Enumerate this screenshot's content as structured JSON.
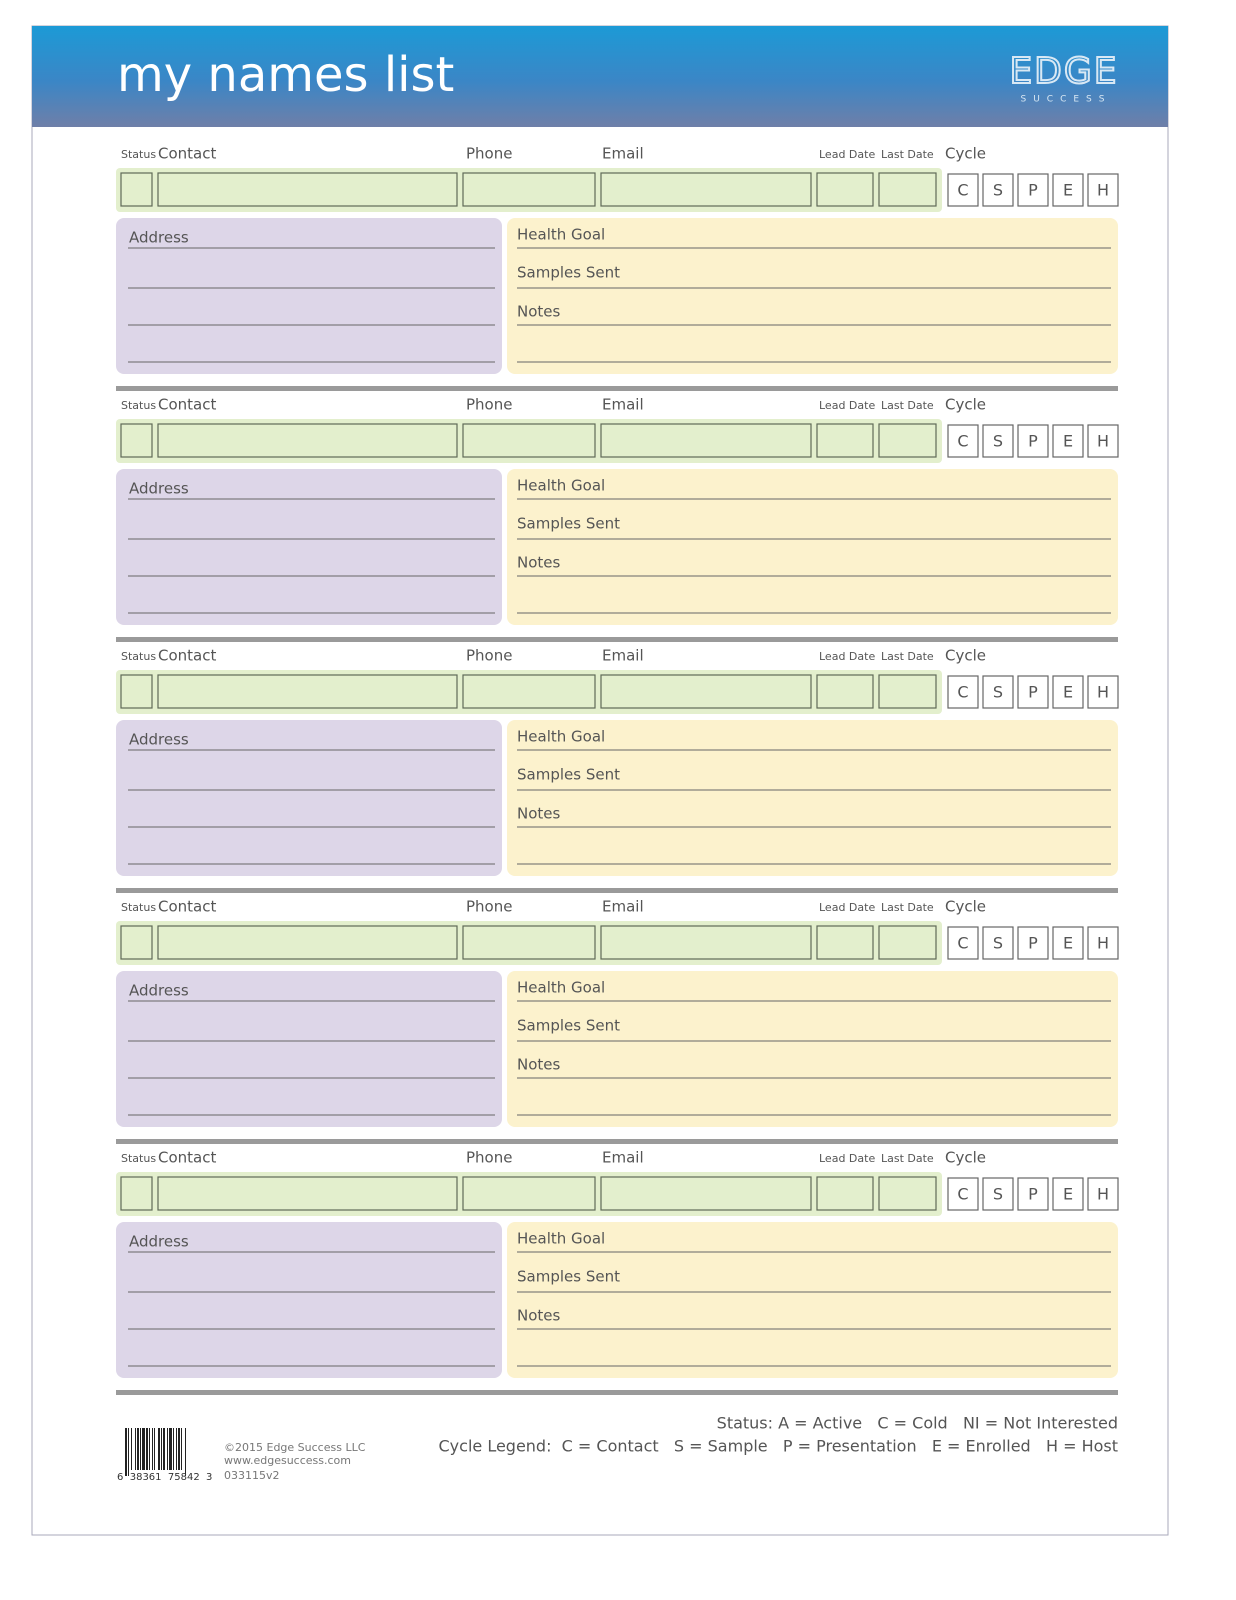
{
  "header": {
    "title": "my names list",
    "logo": {
      "name": "EDGE",
      "tagline": "SUCCESS"
    }
  },
  "records": [
    {
      "status": "Status",
      "contact": "Contact",
      "phone": "Phone",
      "email": "Email",
      "lead_date": "Lead Date",
      "last_date": "Last Date",
      "cycle": "Cycle",
      "cycle_boxes": [
        "C",
        "S",
        "P",
        "E",
        "H"
      ],
      "address": "Address",
      "health_goal": "Health Goal",
      "samples_sent": "Samples Sent",
      "notes": "Notes"
    },
    {
      "status": "Status",
      "contact": "Contact",
      "phone": "Phone",
      "email": "Email",
      "lead_date": "Lead Date",
      "last_date": "Last Date",
      "cycle": "Cycle",
      "cycle_boxes": [
        "C",
        "S",
        "P",
        "E",
        "H"
      ],
      "address": "Address",
      "health_goal": "Health Goal",
      "samples_sent": "Samples Sent",
      "notes": "Notes"
    },
    {
      "status": "Status",
      "contact": "Contact",
      "phone": "Phone",
      "email": "Email",
      "lead_date": "Lead Date",
      "last_date": "Last Date",
      "cycle": "Cycle",
      "cycle_boxes": [
        "C",
        "S",
        "P",
        "E",
        "H"
      ],
      "address": "Address",
      "health_goal": "Health Goal",
      "samples_sent": "Samples Sent",
      "notes": "Notes"
    },
    {
      "status": "Status",
      "contact": "Contact",
      "phone": "Phone",
      "email": "Email",
      "lead_date": "Lead Date",
      "last_date": "Last Date",
      "cycle": "Cycle",
      "cycle_boxes": [
        "C",
        "S",
        "P",
        "E",
        "H"
      ],
      "address": "Address",
      "health_goal": "Health Goal",
      "samples_sent": "Samples Sent",
      "notes": "Notes"
    },
    {
      "status": "Status",
      "contact": "Contact",
      "phone": "Phone",
      "email": "Email",
      "lead_date": "Lead Date",
      "last_date": "Last Date",
      "cycle": "Cycle",
      "cycle_boxes": [
        "C",
        "S",
        "P",
        "E",
        "H"
      ],
      "address": "Address",
      "health_goal": "Health Goal",
      "samples_sent": "Samples Sent",
      "notes": "Notes"
    }
  ],
  "footer": {
    "barcode": "6  38361  75842  3",
    "copyright": "©2015 Edge Success LLC",
    "website": "www.edgesuccess.com",
    "version": "033115v2",
    "status_legend": "Status: A = Active   C = Cold   NI = Not Interested",
    "cycle_legend": "Cycle Legend:  C = Contact   S = Sample   P = Presentation   E = Enrolled   H = Host"
  }
}
